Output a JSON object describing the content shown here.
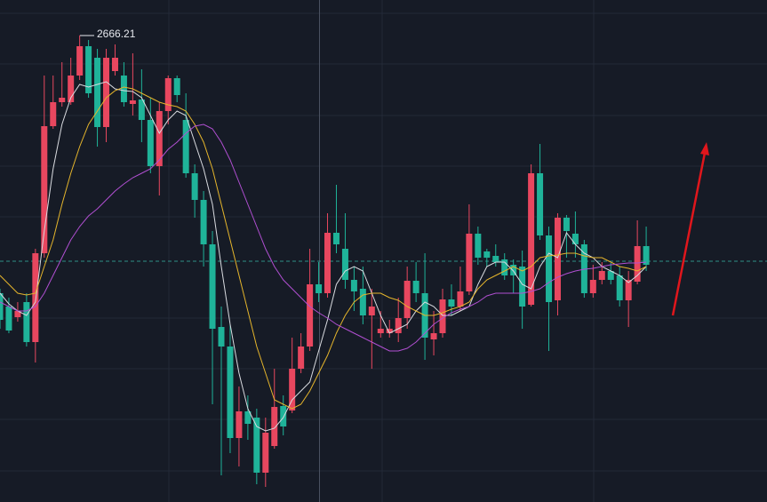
{
  "chart_data": {
    "type": "candlestick",
    "ylim": [
      2141,
      2706
    ],
    "up_color": "#e8475f",
    "down_color": "#1fb399",
    "open": [
      2376,
      2361,
      2349,
      2366,
      2321,
      2421,
      2564,
      2591,
      2591,
      2621,
      2654,
      2641,
      2563,
      2626,
      2621,
      2589,
      2594,
      2571,
      2519,
      2581,
      2618,
      2571,
      2511,
      2481,
      2431,
      2338,
      2316,
      2213,
      2243,
      2236,
      2174,
      2204,
      2249,
      2244,
      2291,
      2316,
      2386,
      2376,
      2444,
      2426,
      2391,
      2381,
      2351,
      2331,
      2331,
      2331,
      2348,
      2390,
      2376,
      2324,
      2331,
      2369,
      2361,
      2378,
      2443,
      2423,
      2418,
      2414,
      2408,
      2406,
      2363,
      2511,
      2441,
      2368,
      2461,
      2443,
      2431,
      2376,
      2391,
      2401,
      2396,
      2368,
      2389,
      2429
    ],
    "high": [
      2381,
      2371,
      2366,
      2376,
      2426,
      2621,
      2621,
      2636,
      2641,
      2666.21,
      2661,
      2651,
      2651,
      2656,
      2636,
      2646,
      2628,
      2596,
      2591,
      2621,
      2621,
      2601,
      2521,
      2491,
      2446,
      2361,
      2341,
      2271,
      2261,
      2246,
      2236,
      2291,
      2261,
      2326,
      2331,
      2426,
      2411,
      2466,
      2498,
      2466,
      2406,
      2406,
      2381,
      2356,
      2346,
      2371,
      2406,
      2411,
      2421,
      2356,
      2381,
      2386,
      2406,
      2476,
      2451,
      2426,
      2431,
      2421,
      2414,
      2424,
      2521,
      2544,
      2451,
      2466,
      2464,
      2468,
      2436,
      2408,
      2411,
      2410,
      2406,
      2401,
      2458,
      2451
    ],
    "low": [
      2336,
      2331,
      2344,
      2316,
      2298,
      2416,
      2561,
      2586,
      2588,
      2616,
      2596,
      2541,
      2546,
      2621,
      2586,
      2576,
      2546,
      2511,
      2486,
      2566,
      2591,
      2506,
      2461,
      2406,
      2251,
      2171,
      2196,
      2181,
      2211,
      2161,
      2158,
      2201,
      2216,
      2241,
      2286,
      2311,
      2366,
      2371,
      2421,
      2381,
      2356,
      2341,
      2291,
      2326,
      2326,
      2321,
      2336,
      2366,
      2301,
      2306,
      2326,
      2351,
      2356,
      2374,
      2408,
      2406,
      2406,
      2391,
      2376,
      2336,
      2361,
      2436,
      2311,
      2351,
      2416,
      2416,
      2371,
      2371,
      2386,
      2386,
      2361,
      2338,
      2386,
      2401
    ],
    "close": [
      2346,
      2334,
      2356,
      2321,
      2421,
      2564,
      2591,
      2596,
      2621,
      2654,
      2601,
      2563,
      2641,
      2641,
      2591,
      2593,
      2571,
      2519,
      2581,
      2618,
      2599,
      2511,
      2481,
      2431,
      2336,
      2316,
      2213,
      2243,
      2229,
      2174,
      2219,
      2248,
      2226,
      2291,
      2316,
      2386,
      2376,
      2444,
      2431,
      2391,
      2378,
      2351,
      2361,
      2336,
      2336,
      2348,
      2390,
      2376,
      2326,
      2331,
      2369,
      2361,
      2378,
      2443,
      2416,
      2416,
      2411,
      2396,
      2396,
      2361,
      2511,
      2441,
      2366,
      2461,
      2446,
      2431,
      2376,
      2391,
      2401,
      2391,
      2368,
      2391,
      2429,
      2408
    ],
    "lines": [
      {
        "color": "#d9dbe0",
        "values": [
          2376,
          2364,
          2356,
          2351,
          2366,
          2446,
          2516,
          2566,
          2596,
          2611,
          2608,
          2611,
          2614,
          2606,
          2604,
          2603,
          2596,
          2576,
          2556,
          2571,
          2581,
          2576,
          2546,
          2516,
          2476,
          2406,
          2341,
          2286,
          2246,
          2226,
          2221,
          2224,
          2236,
          2256,
          2266,
          2276,
          2311,
          2346,
          2386,
          2401,
          2406,
          2401,
          2376,
          2351,
          2331,
          2336,
          2341,
          2356,
          2366,
          2361,
          2351,
          2351,
          2356,
          2361,
          2386,
          2406,
          2411,
          2411,
          2401,
          2386,
          2381,
          2406,
          2421,
          2416,
          2444,
          2431,
          2421,
          2416,
          2406,
          2401,
          2396,
          2388,
          2396,
          2406
        ]
      },
      {
        "color": "#e5b52c",
        "values": [
          2396,
          2386,
          2376,
          2374,
          2376,
          2406,
          2436,
          2476,
          2511,
          2541,
          2566,
          2581,
          2596,
          2604,
          2608,
          2606,
          2601,
          2596,
          2591,
          2588,
          2586,
          2581,
          2566,
          2546,
          2516,
          2476,
          2436,
          2396,
          2356,
          2316,
          2286,
          2256,
          2251,
          2246,
          2251,
          2266,
          2286,
          2306,
          2331,
          2351,
          2366,
          2374,
          2376,
          2376,
          2371,
          2368,
          2361,
          2356,
          2351,
          2351,
          2354,
          2358,
          2361,
          2366,
          2381,
          2391,
          2396,
          2401,
          2406,
          2401,
          2406,
          2416,
          2418,
          2419,
          2421,
          2421,
          2418,
          2416,
          2416,
          2411,
          2406,
          2404,
          2401,
          2406
        ]
      },
      {
        "color": "#b04fd1",
        "values": [
          2366,
          2361,
          2356,
          2356,
          2361,
          2376,
          2396,
          2416,
          2436,
          2451,
          2463,
          2471,
          2481,
          2491,
          2499,
          2506,
          2511,
          2516,
          2526,
          2538,
          2546,
          2556,
          2564,
          2566,
          2561,
          2546,
          2526,
          2501,
          2476,
          2451,
          2426,
          2406,
          2391,
          2381,
          2371,
          2361,
          2354,
          2348,
          2341,
          2336,
          2331,
          2326,
          2321,
          2316,
          2311,
          2311,
          2314,
          2321,
          2331,
          2341,
          2348,
          2354,
          2358,
          2361,
          2366,
          2373,
          2376,
          2376,
          2376,
          2376,
          2378,
          2381,
          2388,
          2394,
          2398,
          2401,
          2403,
          2404,
          2406,
          2408,
          2409,
          2410,
          2410,
          2411
        ]
      }
    ],
    "hline": 2412
  }
}
